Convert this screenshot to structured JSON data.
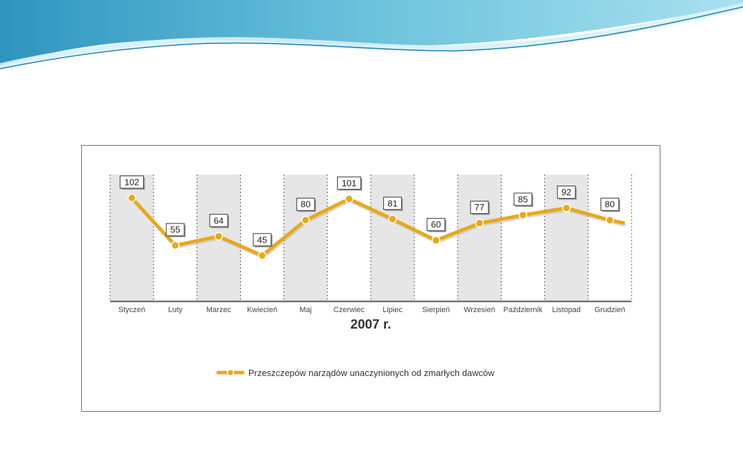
{
  "colors": {
    "series": "#e8a916",
    "band": "#e6e6e6",
    "wave_dark": "#3a9fc6",
    "wave_light": "#8fd3e4"
  },
  "chart_data": {
    "type": "line",
    "title": "",
    "xlabel": "2007 r.",
    "ylabel": "",
    "categories": [
      "Styczeń",
      "Luty",
      "Marzec",
      "Kwiecień",
      "Maj",
      "Czerwiec",
      "Lipiec",
      "Sierpień",
      "Wrzesień",
      "Październik",
      "Listopad",
      "Grudzień"
    ],
    "series": [
      {
        "name": "Przeszczepów narządów unaczynionych od zmarłych dawców",
        "values": [
          102,
          55,
          64,
          45,
          80,
          101,
          81,
          60,
          77,
          85,
          92,
          80
        ]
      }
    ],
    "ylim": [
      0,
      125
    ],
    "grid": false,
    "legend": "bottom-center"
  }
}
